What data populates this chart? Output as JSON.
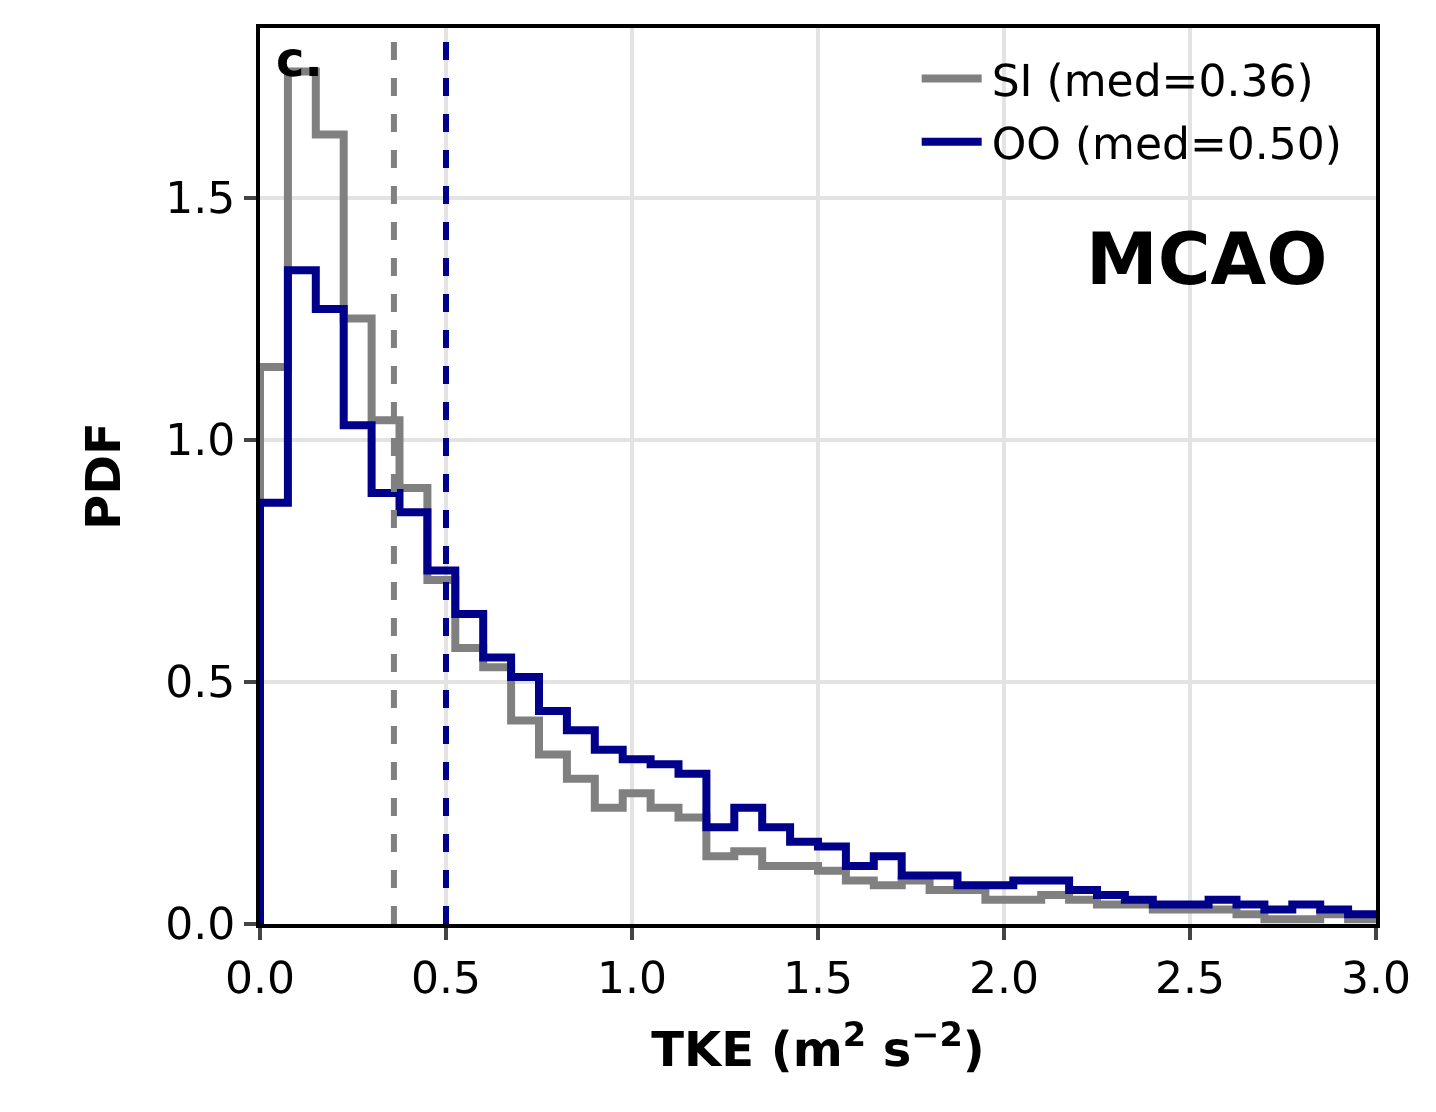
{
  "chart_data": {
    "type": "histogram",
    "xlabel": "TKE (m$^{2}$ s$^{−2}$)",
    "ylabel": "PDF",
    "bins": [
      0,
      0.075,
      0.15,
      0.225,
      0.3,
      0.375,
      0.45,
      0.525,
      0.6,
      0.675,
      0.75,
      0.825,
      0.9,
      0.975,
      1.05,
      1.125,
      1.2,
      1.275,
      1.35,
      1.425,
      1.5,
      1.575,
      1.65,
      1.725,
      1.8,
      1.875,
      1.95,
      2.025,
      2.1,
      2.175,
      2.25,
      2.325,
      2.4,
      2.475,
      2.55,
      2.625,
      2.7,
      2.775,
      2.85,
      2.925,
      3.0
    ],
    "series": [
      {
        "name": "SI (med=0.36)",
        "color": "#808080",
        "values": [
          1.15,
          1.76,
          1.63,
          1.25,
          1.04,
          0.9,
          0.71,
          0.57,
          0.53,
          0.42,
          0.35,
          0.3,
          0.24,
          0.27,
          0.24,
          0.22,
          0.14,
          0.15,
          0.12,
          0.12,
          0.11,
          0.09,
          0.08,
          0.09,
          0.07,
          0.07,
          0.05,
          0.05,
          0.06,
          0.05,
          0.04,
          0.04,
          0.03,
          0.03,
          0.03,
          0.02,
          0.01,
          0.01,
          0.02,
          0.01
        ]
      },
      {
        "name": "OO (med=0.50)",
        "color": "#00008b",
        "values": [
          0.87,
          1.35,
          1.27,
          1.03,
          0.89,
          0.85,
          0.73,
          0.64,
          0.55,
          0.51,
          0.44,
          0.4,
          0.36,
          0.34,
          0.33,
          0.31,
          0.2,
          0.24,
          0.2,
          0.17,
          0.16,
          0.12,
          0.14,
          0.1,
          0.1,
          0.08,
          0.08,
          0.09,
          0.09,
          0.07,
          0.06,
          0.05,
          0.04,
          0.04,
          0.05,
          0.04,
          0.03,
          0.04,
          0.03,
          0.02
        ]
      }
    ],
    "ref_lines": [
      {
        "axis": "x",
        "value": 0.36,
        "color": "#808080",
        "line_style": "dashed"
      },
      {
        "axis": "x",
        "value": 0.5,
        "color": "#00008b",
        "line_style": "dashed"
      }
    ],
    "annotations": [
      "c.",
      "MCAO"
    ],
    "xlim": [
      0,
      3.0
    ],
    "xticks": [
      {
        "value": 0,
        "label": "0.0"
      },
      0.5,
      {
        "value": 1,
        "label": "1.0"
      },
      1.5,
      {
        "value": 2,
        "label": "2.0"
      },
      2.5,
      {
        "value": 3,
        "label": "3.0"
      }
    ],
    "ylim": [
      0,
      1.85
    ],
    "yticks": [
      {
        "value": 0,
        "label": "0.0"
      },
      0.5,
      {
        "value": 1,
        "label": "1.0"
      },
      1.5
    ],
    "grid": true,
    "legend": "top right"
  }
}
